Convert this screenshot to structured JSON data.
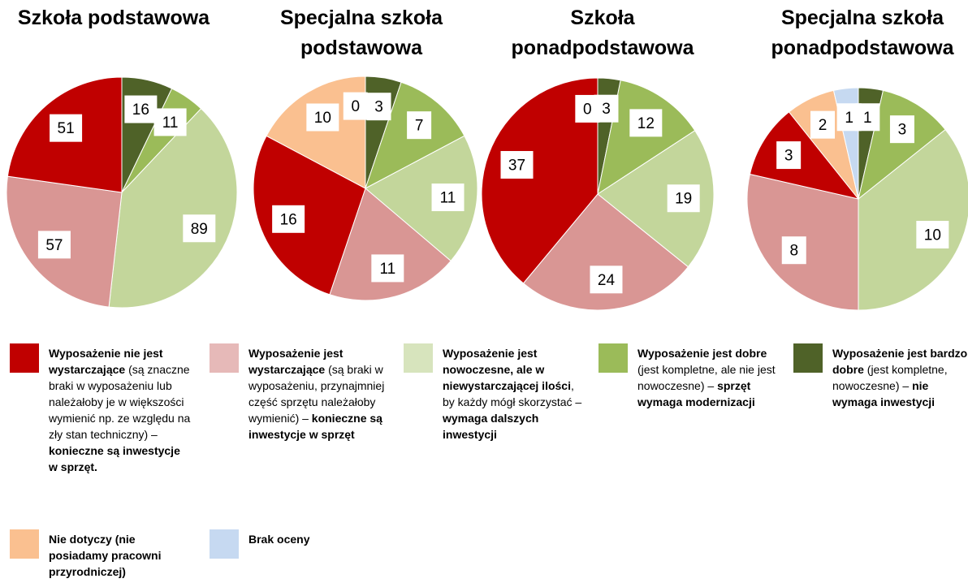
{
  "chart_data": [
    {
      "type": "pie",
      "title": "Szkoła podstawowa",
      "values": [
        16,
        11,
        89,
        57,
        51
      ],
      "colors": [
        "#4f6228",
        "#9bbb59",
        "#c3d69b",
        "#d99694",
        "#c00000"
      ]
    },
    {
      "type": "pie",
      "title": "Specjalna szkoła podstawowa",
      "values": [
        3,
        7,
        11,
        11,
        16,
        10,
        0
      ],
      "colors": [
        "#4f6228",
        "#9bbb59",
        "#c3d69b",
        "#d99694",
        "#c00000",
        "#fac090",
        "#c6d9f1"
      ]
    },
    {
      "type": "pie",
      "title": "Szkoła ponadpodstawowa",
      "values": [
        3,
        12,
        19,
        24,
        37,
        0
      ],
      "colors": [
        "#4f6228",
        "#9bbb59",
        "#c3d69b",
        "#d99694",
        "#c00000",
        "#fac090"
      ]
    },
    {
      "type": "pie",
      "title": "Specjalna szkoła ponadpodstawowa",
      "values": [
        1,
        3,
        10,
        8,
        3,
        2,
        1
      ],
      "colors": [
        "#4f6228",
        "#9bbb59",
        "#c3d69b",
        "#d99694",
        "#c00000",
        "#fac090",
        "#c6d9f1"
      ]
    }
  ],
  "legend": [
    {
      "color": "#c00000",
      "segments": [
        {
          "text": "Wyposażenie nie jest wystarczające",
          "bold": true
        },
        {
          "text": " (są znaczne braki w wyposażeniu lub należałoby je w większości wymienić np. ze względu na zły stan techniczny) – ",
          "bold": false
        },
        {
          "text": "konieczne są inwestycje w sprzęt.",
          "bold": true
        }
      ]
    },
    {
      "color": "#e6b9b8",
      "segments": [
        {
          "text": "Wyposażenie jest wystarczające",
          "bold": true
        },
        {
          "text": " (są braki w wyposażeniu, przynajmniej część sprzętu należałoby wymienić) – ",
          "bold": false
        },
        {
          "text": "konieczne są inwestycje w sprzęt",
          "bold": true
        }
      ]
    },
    {
      "color": "#d7e4bd",
      "segments": [
        {
          "text": "Wyposażenie jest nowoczesne, ale w niewystarczającej ilości",
          "bold": true
        },
        {
          "text": ", by każdy mógł skorzystać –",
          "bold": false
        },
        {
          "text": "wymaga dalszych inwestycji",
          "bold": true
        }
      ]
    },
    {
      "color": "#9bbb59",
      "segments": [
        {
          "text": "Wyposażenie jest dobre",
          "bold": true
        },
        {
          "text": " (jest kompletne, ale nie jest nowoczesne) – ",
          "bold": false
        },
        {
          "text": "sprzęt wymaga modernizacji",
          "bold": true
        }
      ]
    },
    {
      "color": "#4f6228",
      "segments": [
        {
          "text": "Wyposażenie jest bardzo dobre",
          "bold": true
        },
        {
          "text": " (jest kompletne, nowoczesne) – ",
          "bold": false
        },
        {
          "text": "nie wymaga inwestycji",
          "bold": true
        }
      ]
    },
    {
      "color": "#fac090",
      "segments": [
        {
          "text": "Nie dotyczy (nie posiadamy pracowni przyrodniczej)",
          "bold": true
        }
      ]
    },
    {
      "color": "#c6d9f1",
      "segments": [
        {
          "text": "Brak oceny",
          "bold": true
        }
      ]
    }
  ]
}
